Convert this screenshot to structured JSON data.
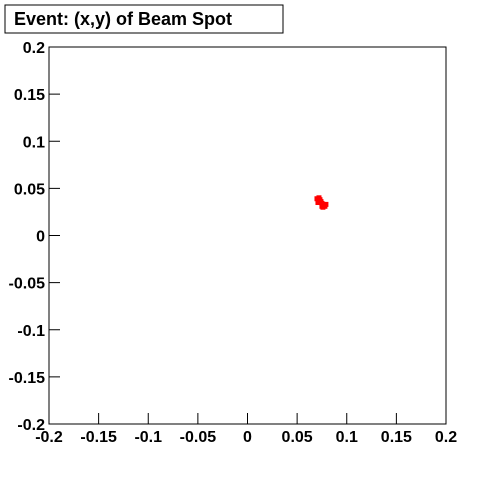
{
  "chart_data": {
    "type": "scatter",
    "title": "Event: (x,y) of Beam Spot",
    "series": [
      {
        "color": "#ff0000",
        "x": [
          0.07,
          0.071,
          0.072,
          0.073,
          0.074,
          0.075,
          0.076,
          0.077,
          0.078,
          0.072,
          0.074,
          0.076,
          0.079,
          0.071,
          0.075
        ],
        "values": [
          0.039,
          0.037,
          0.036,
          0.038,
          0.035,
          0.034,
          0.033,
          0.032,
          0.031,
          0.04,
          0.036,
          0.03,
          0.033,
          0.035,
          0.031
        ]
      }
    ],
    "xlim": [
      -0.2,
      0.2
    ],
    "xticks": [
      -0.2,
      -0.15,
      -0.1,
      -0.05,
      0,
      0.05,
      0.1,
      0.15,
      0.2
    ],
    "ylim": [
      -0.2,
      0.2
    ],
    "yticks": [
      -0.2,
      -0.15,
      -0.1,
      -0.05,
      0,
      0.05,
      0.1,
      0.15,
      0.2
    ]
  }
}
